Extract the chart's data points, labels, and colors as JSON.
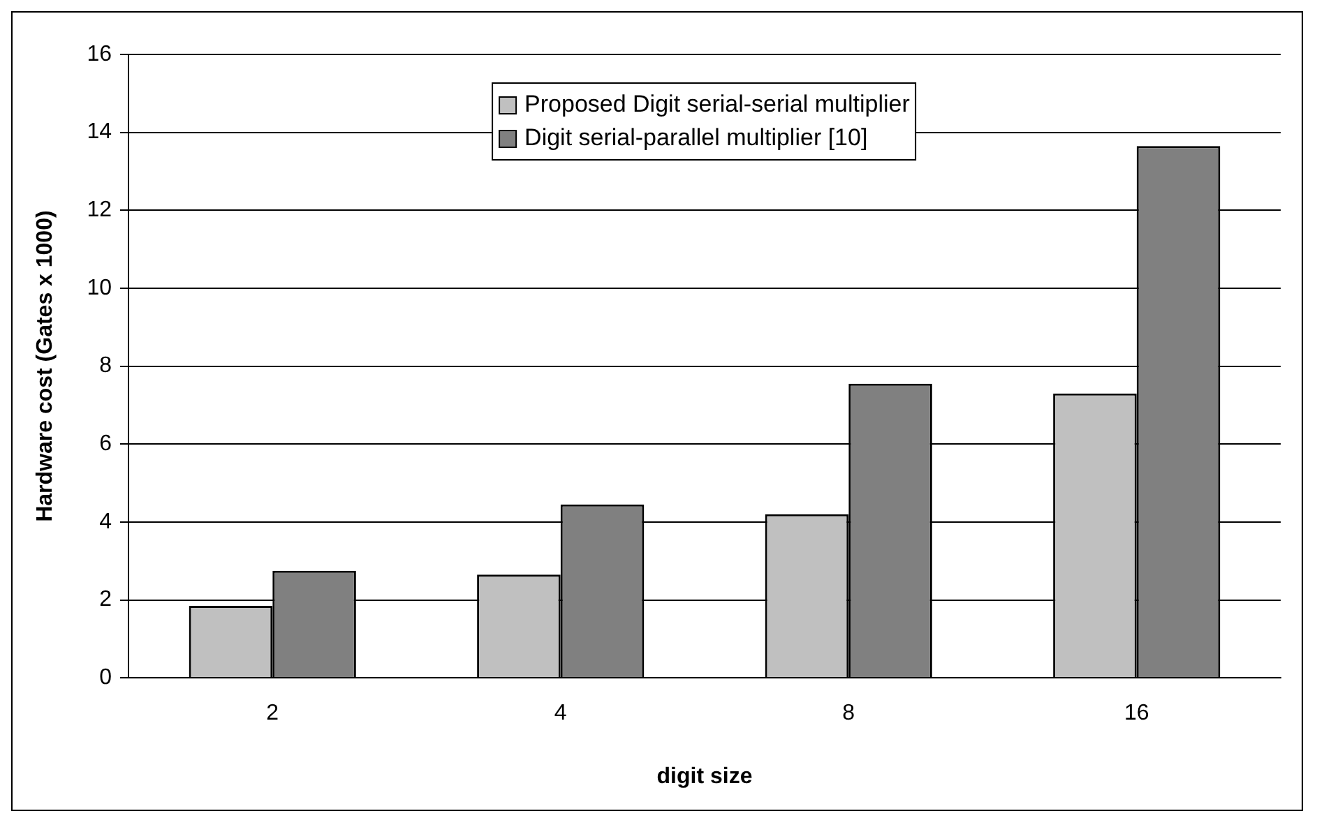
{
  "chart_data": {
    "type": "bar",
    "xlabel": "digit size",
    "ylabel": "Hardware cost (Gates x 1000)",
    "categories": [
      "2",
      "4",
      "8",
      "16"
    ],
    "series": [
      {
        "name": "Proposed Digit serial-serial multiplier",
        "color": "#c0c0c0",
        "values": [
          1.85,
          2.65,
          4.2,
          7.3
        ]
      },
      {
        "name": "Digit serial-parallel multiplier [10]",
        "color": "#808080",
        "values": [
          2.75,
          4.45,
          7.55,
          13.65
        ]
      }
    ],
    "ylim": [
      0,
      16
    ],
    "yticks": [
      0,
      2,
      4,
      6,
      8,
      10,
      12,
      14,
      16
    ],
    "grid": "y",
    "legend": "top"
  }
}
